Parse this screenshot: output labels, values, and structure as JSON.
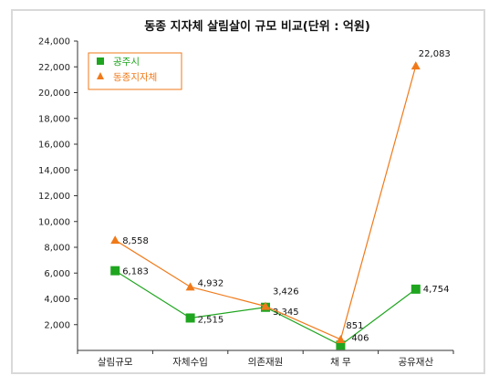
{
  "chart_data": {
    "type": "line",
    "title": "동종 지자체 살림살이 규모 비교(단위 : 억원)",
    "categories": [
      "살림규모",
      "자체수입",
      "의존재원",
      "채 무",
      "공유재산"
    ],
    "ylim": [
      0,
      24000
    ],
    "yticks": [
      "2,000",
      "4,000",
      "6,000",
      "8,000",
      "10,000",
      "12,000",
      "14,000",
      "16,000",
      "18,000",
      "20,000",
      "22,000",
      "24,000"
    ],
    "grid": false,
    "legend_position": "top-left",
    "series": [
      {
        "name": "공주시",
        "marker": "square",
        "color": "#1fa51f",
        "values": [
          6183,
          2515,
          3345,
          406,
          4754
        ],
        "labels": [
          "6,183",
          "2,515",
          "3,345",
          "406",
          "4,754"
        ]
      },
      {
        "name": "동종지자체",
        "marker": "triangle",
        "color": "#f07a1a",
        "values": [
          8558,
          4932,
          3426,
          851,
          22083
        ],
        "labels": [
          "8,558",
          "4,932",
          "3,426",
          "851",
          "22,083"
        ]
      }
    ]
  }
}
